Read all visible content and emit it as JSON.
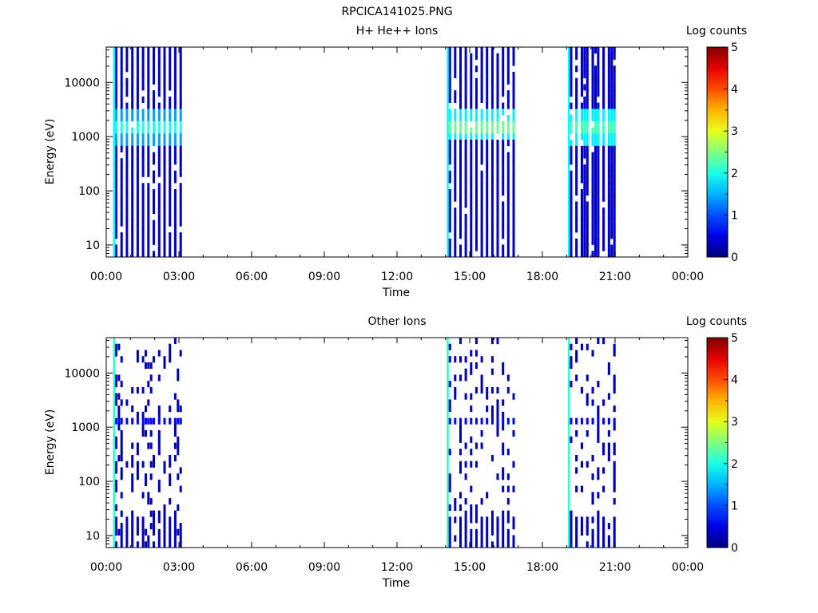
{
  "figure_title": "RPCICA141025.PNG",
  "chart_data": [
    {
      "type": "heatmap",
      "title": "H+ He++ Ions",
      "xlabel": "Time",
      "ylabel": "Energy (eV)",
      "x_ticks": [
        "00:00",
        "03:00",
        "06:00",
        "09:00",
        "12:00",
        "15:00",
        "18:00",
        "21:00",
        "00:00"
      ],
      "xlim_hours": [
        0,
        24
      ],
      "y_scale": "log",
      "y_ticks": [
        "10",
        "100",
        "1000",
        "10000"
      ],
      "ylim_ev": [
        6,
        45000
      ],
      "colorbar": {
        "label": "Log counts",
        "range": [
          0,
          5
        ],
        "ticks": [
          "0",
          "1",
          "2",
          "3",
          "4",
          "5"
        ]
      },
      "intervals": [
        {
          "start_h": 0.28,
          "end_h": 3.05,
          "band_log": [
            1.0,
            2.0
          ],
          "band_center_ev": 1500
        },
        {
          "start_h": 14.05,
          "end_h": 16.9,
          "band_log": [
            1.4,
            2.4
          ],
          "band_center_ev": 1600
        },
        {
          "start_h": 19.05,
          "end_h": 20.95,
          "band_log": [
            1.4,
            2.2
          ],
          "band_center_ev": 1500
        }
      ],
      "grid": false
    },
    {
      "type": "heatmap",
      "title": "Other Ions",
      "xlabel": "Time",
      "ylabel": "Energy (eV)",
      "x_ticks": [
        "00:00",
        "03:00",
        "06:00",
        "09:00",
        "12:00",
        "15:00",
        "18:00",
        "21:00",
        "00:00"
      ],
      "xlim_hours": [
        0,
        24
      ],
      "y_scale": "log",
      "y_ticks": [
        "10",
        "100",
        "1000",
        "10000"
      ],
      "ylim_ev": [
        6,
        45000
      ],
      "colorbar": {
        "label": "Log counts",
        "range": [
          0,
          5
        ],
        "ticks": [
          "0",
          "1",
          "2",
          "3",
          "4",
          "5"
        ]
      },
      "intervals": [
        {
          "start_h": 0.28,
          "end_h": 3.05,
          "band_log": [
            0.5,
            1.0
          ],
          "band_center_ev": 1400
        },
        {
          "start_h": 14.05,
          "end_h": 16.9,
          "band_log": [
            0.5,
            1.0
          ],
          "band_center_ev": 1400
        },
        {
          "start_h": 19.05,
          "end_h": 20.95,
          "band_log": [
            0.5,
            1.0
          ],
          "band_center_ev": 1400
        }
      ],
      "grid": false
    }
  ]
}
